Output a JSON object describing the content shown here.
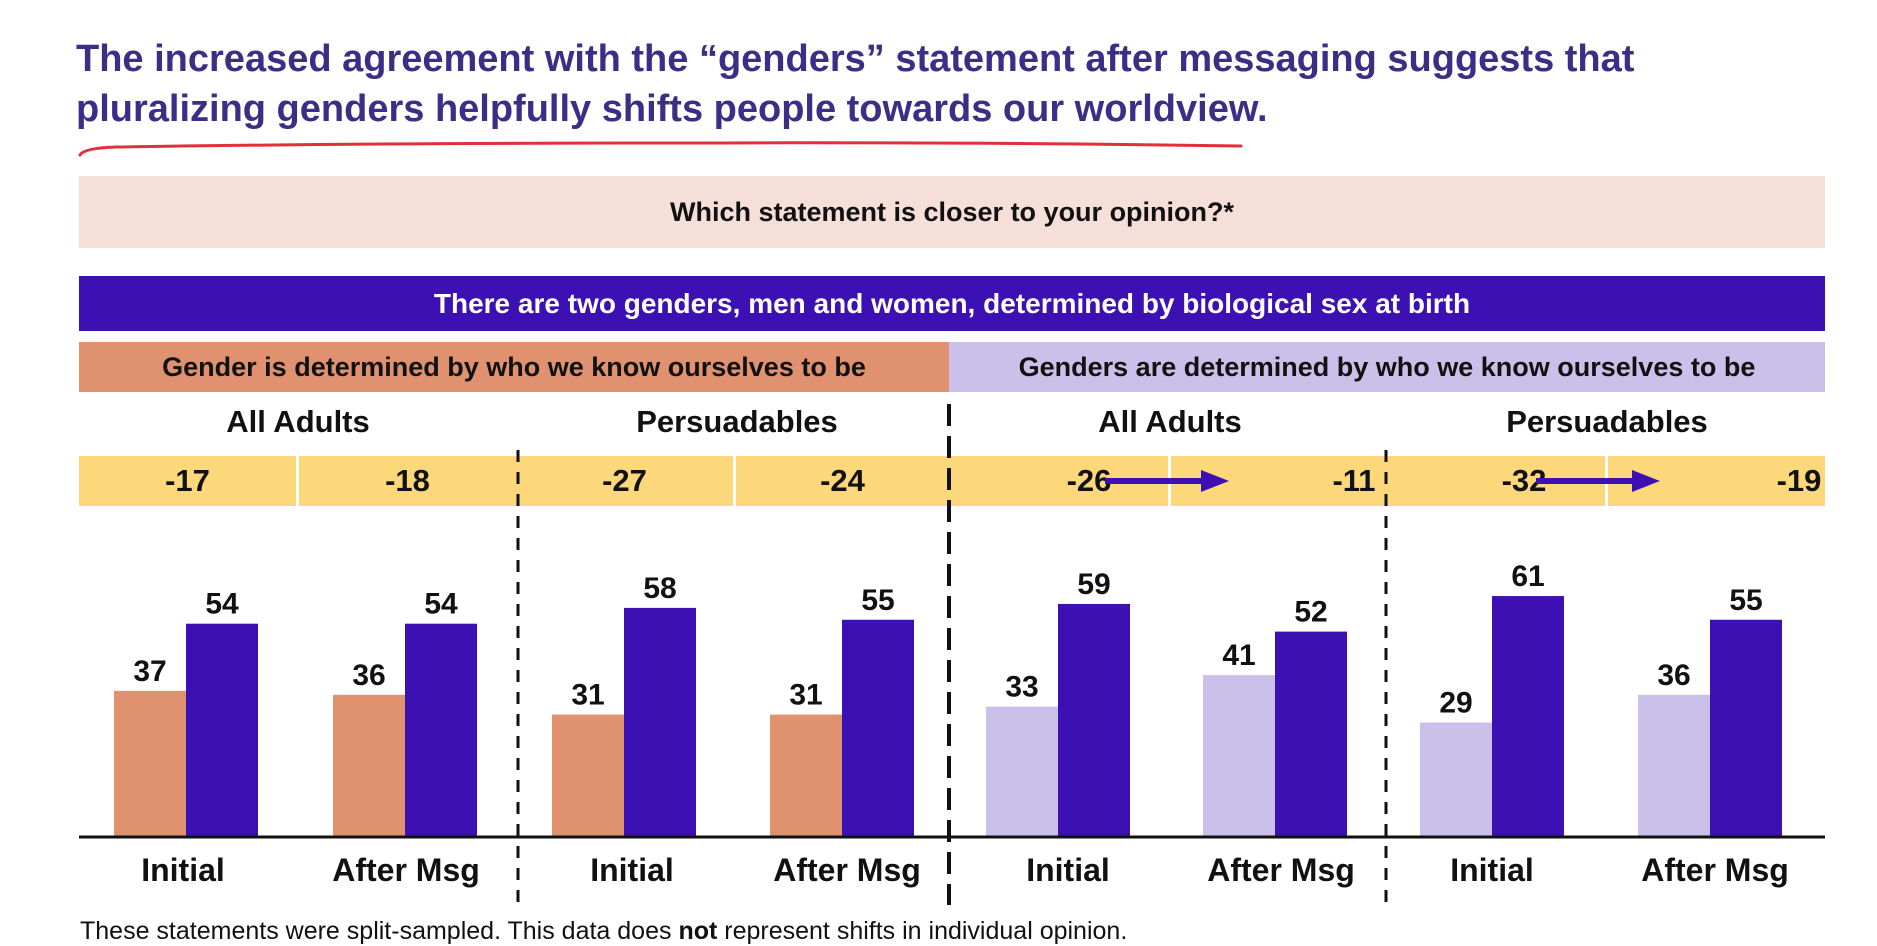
{
  "headline": "The increased agreement with the “genders” statement after messaging suggests that pluralizing genders helpfully shifts people towards our worldview.",
  "question": "Which statement is closer to your opinion?*",
  "statement_two_genders": "There are two genders, men and women, determined by biological sex at birth",
  "statement_gender_is": "Gender is determined by who we know ourselves to be",
  "statement_genders_are": "Genders are determined by who we know ourselves to be",
  "group_labels": [
    "All Adults",
    "Persuadables",
    "All Adults",
    "Persuadables"
  ],
  "net_values": [
    "-17",
    "-18",
    "-27",
    "-24",
    "-26",
    "-11",
    "-32",
    "-19"
  ],
  "x_labels": [
    "Initial",
    "After Msg",
    "Initial",
    "After Msg",
    "Initial",
    "After Msg",
    "Initial",
    "After Msg"
  ],
  "footnote": {
    "part1": "These statements were split-sampled. This data does ",
    "bold": "not",
    "part2": " represent shifts in individual opinion."
  },
  "colors": {
    "headline": "#3a2e86",
    "two_genders": "#3c10b2",
    "gender_is": "#e09270",
    "genders_are": "#cbc0ea",
    "net_band": "#fdd87a",
    "question_band": "#f6dfd9",
    "underline": "#e0303a"
  },
  "chart_data": {
    "type": "bar",
    "categories": [
      "Initial",
      "After Msg",
      "Initial",
      "After Msg",
      "Initial",
      "After Msg",
      "Initial",
      "After Msg"
    ],
    "groups": [
      "All Adults",
      "Persuadables",
      "All Adults",
      "Persuadables"
    ],
    "series": [
      {
        "name": "Gender is determined by who we know ourselves to be",
        "values": [
          37,
          36,
          31,
          31,
          null,
          null,
          null,
          null
        ]
      },
      {
        "name": "Genders are determined by who we know ourselves to be",
        "values": [
          null,
          null,
          null,
          null,
          33,
          41,
          29,
          36
        ]
      },
      {
        "name": "There are two genders, men and women, determined by biological sex at birth",
        "values": [
          54,
          54,
          58,
          55,
          59,
          52,
          61,
          55
        ]
      }
    ],
    "net": [
      -17,
      -18,
      -27,
      -24,
      -26,
      -11,
      -32,
      -19
    ],
    "ylim": [
      0,
      70
    ],
    "grid": false
  }
}
